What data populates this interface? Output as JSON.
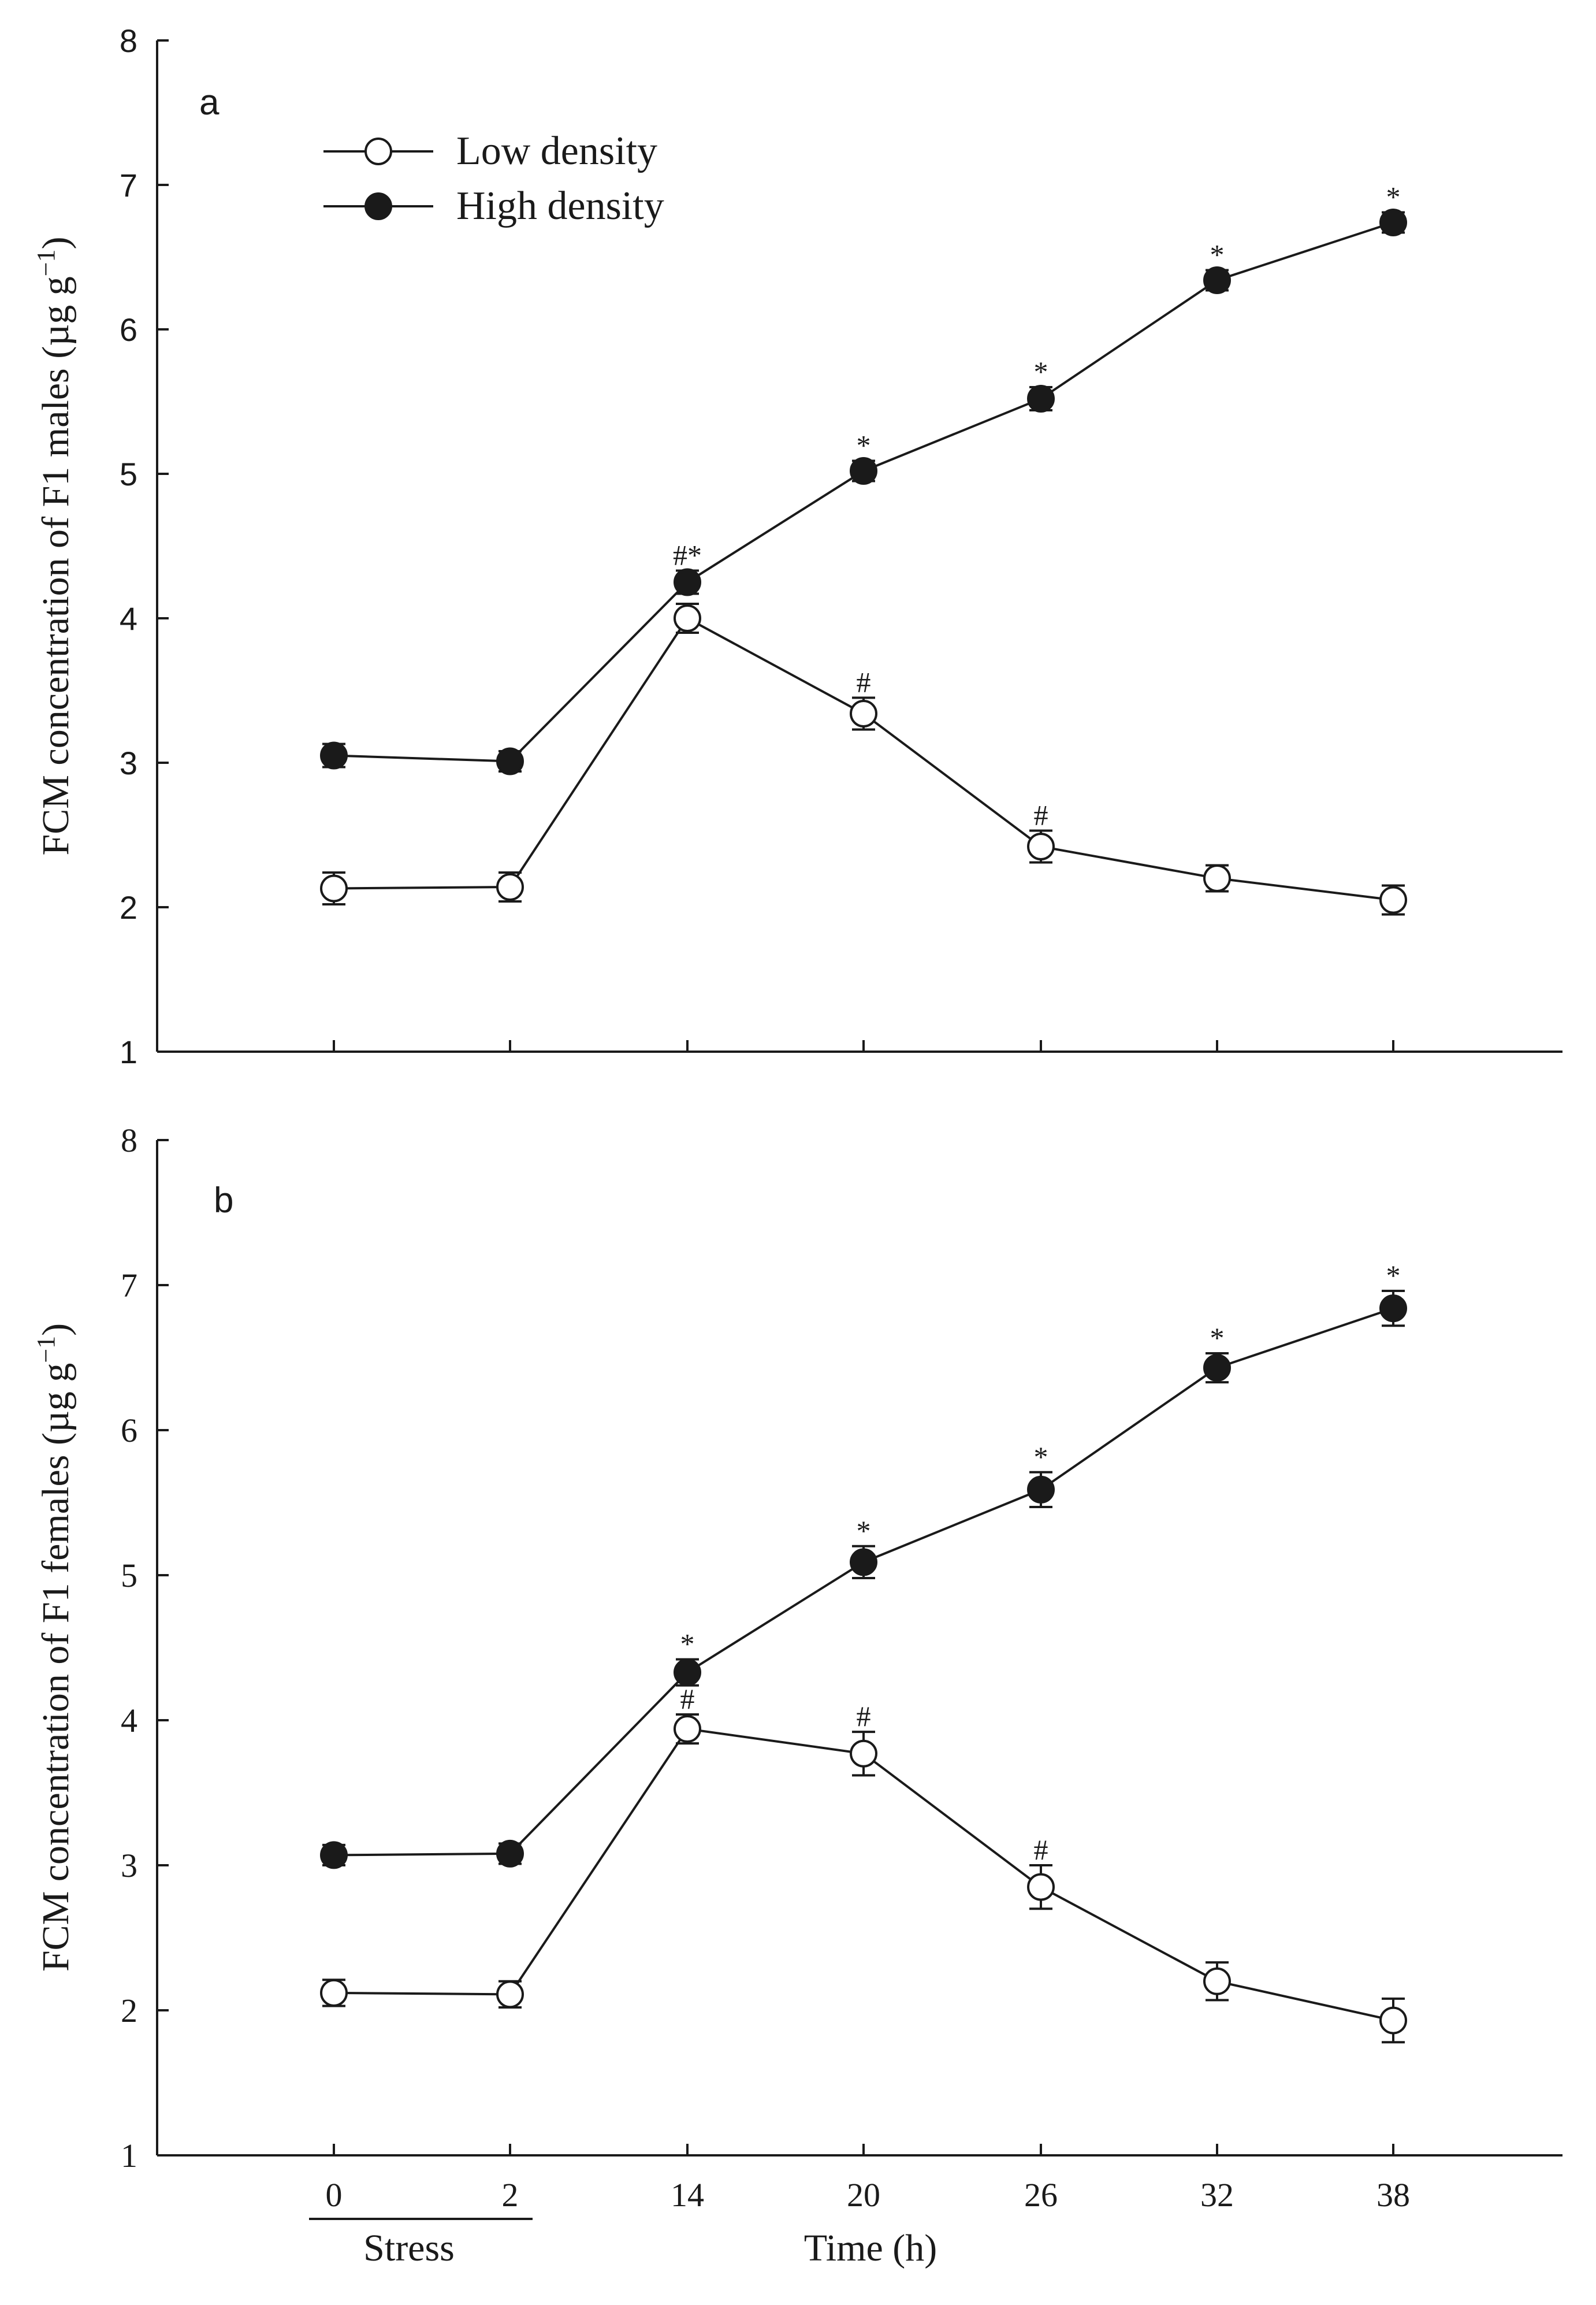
{
  "chart_data": [
    {
      "type": "line",
      "panel_label": "a",
      "ylabel": "FCM concentration of F1 males (µg g",
      "ylabel_sup": "−1",
      "ylabel_close": ")",
      "ylim": [
        1,
        8
      ],
      "yticks": [
        "1",
        "2",
        "3",
        "4",
        "5",
        "6",
        "7",
        "8"
      ],
      "categories": [
        "0",
        "2",
        "14",
        "20",
        "26",
        "32",
        "38"
      ],
      "legend": {
        "position": "top-left",
        "entries": [
          "Low density",
          "High density"
        ]
      },
      "series": [
        {
          "name": "Low density",
          "marker": "open-circle",
          "values": [
            2.13,
            2.14,
            4.0,
            3.34,
            2.42,
            2.2,
            2.05
          ],
          "errors": [
            0.11,
            0.1,
            0.1,
            0.11,
            0.11,
            0.09,
            0.1
          ],
          "annotations": [
            "",
            "",
            "",
            "#",
            "#",
            "",
            ""
          ]
        },
        {
          "name": "High density",
          "marker": "filled-circle",
          "values": [
            3.05,
            3.01,
            4.25,
            5.02,
            5.52,
            6.34,
            6.74
          ],
          "errors": [
            0.08,
            0.07,
            0.08,
            0.07,
            0.08,
            0.07,
            0.07
          ],
          "annotations": [
            "",
            "",
            "#*",
            "*",
            "*",
            "*",
            "*"
          ]
        }
      ]
    },
    {
      "type": "line",
      "panel_label": "b",
      "ylabel": "FCM concentration of F1 females (µg g",
      "ylabel_sup": "−1",
      "ylabel_close": ")",
      "ylim": [
        1,
        8
      ],
      "yticks": [
        "1",
        "2",
        "3",
        "4",
        "5",
        "6",
        "7",
        "8"
      ],
      "categories": [
        "0",
        "2",
        "14",
        "20",
        "26",
        "32",
        "38"
      ],
      "xlabel": "Time (h)",
      "bracket_label": "Stress",
      "series": [
        {
          "name": "Low density",
          "marker": "open-circle",
          "values": [
            2.12,
            2.11,
            3.94,
            3.77,
            2.85,
            2.2,
            1.93
          ],
          "errors": [
            0.09,
            0.09,
            0.1,
            0.15,
            0.15,
            0.13,
            0.15
          ],
          "annotations": [
            "",
            "",
            "#",
            "#",
            "#",
            "",
            ""
          ]
        },
        {
          "name": "High density",
          "marker": "filled-circle",
          "values": [
            3.07,
            3.08,
            4.33,
            5.09,
            5.59,
            6.43,
            6.84
          ],
          "errors": [
            0.07,
            0.07,
            0.09,
            0.11,
            0.12,
            0.1,
            0.12
          ],
          "annotations": [
            "",
            "",
            "*",
            "*",
            "*",
            "*",
            "*"
          ]
        }
      ]
    }
  ]
}
